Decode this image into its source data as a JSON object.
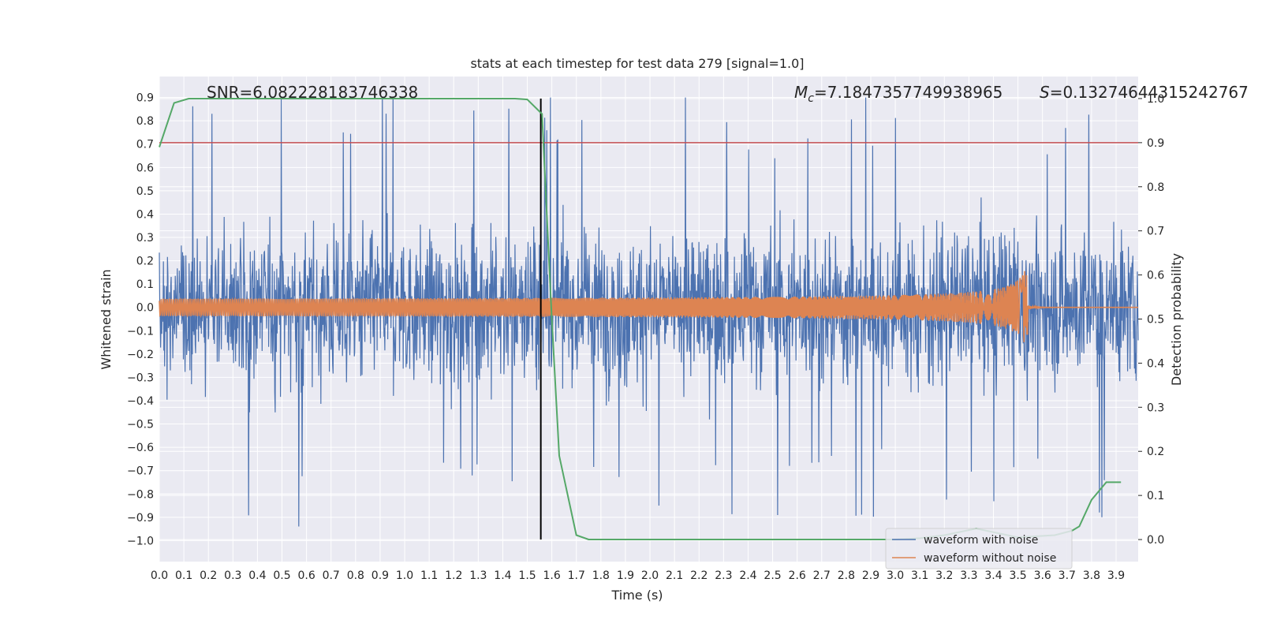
{
  "chart_data": {
    "type": "line",
    "title": "stats at each timestep for test data 279 [signal=1.0]",
    "xlabel": "Time (s)",
    "ylabel": "Whitened strain",
    "ylabel_right": "Detection probability",
    "xlim": [
      0.0,
      3.99
    ],
    "ylim": [
      -1.09,
      0.99
    ],
    "ylim_right": [
      -0.05,
      1.05
    ],
    "x_ticks": [
      "0.0",
      "0.1",
      "0.2",
      "0.3",
      "0.4",
      "0.5",
      "0.6",
      "0.7",
      "0.8",
      "0.9",
      "1.0",
      "1.1",
      "1.2",
      "1.3",
      "1.4",
      "1.5",
      "1.6",
      "1.7",
      "1.8",
      "1.9",
      "2.0",
      "2.1",
      "2.2",
      "2.3",
      "2.4",
      "2.5",
      "2.6",
      "2.7",
      "2.8",
      "2.9",
      "3.0",
      "3.1",
      "3.2",
      "3.3",
      "3.4",
      "3.5",
      "3.6",
      "3.7",
      "3.8",
      "3.9"
    ],
    "y_ticks": [
      "−1.0",
      "−0.9",
      "−0.8",
      "−0.7",
      "−0.6",
      "−0.5",
      "−0.4",
      "−0.3",
      "−0.2",
      "−0.1",
      "0.0",
      "0.1",
      "0.2",
      "0.3",
      "0.4",
      "0.5",
      "0.6",
      "0.7",
      "0.8",
      "0.9"
    ],
    "y_ticks_right": [
      "0.0",
      "0.1",
      "0.2",
      "0.3",
      "0.4",
      "0.5",
      "0.6",
      "0.7",
      "0.8",
      "0.9",
      "1.0"
    ],
    "annotations": {
      "snr": "SNR=6.082228183746338",
      "mc_symbol": "M",
      "mc_sub": "c",
      "mc_value": "=7.1847357749938965",
      "s_symbol": "S",
      "s_value": "=0.13274644315242767"
    },
    "threshold_right": 0.9,
    "vline_x": 1.555,
    "probability_series": {
      "name": "detection probability",
      "x": [
        0.0,
        0.06,
        0.12,
        0.25,
        0.5,
        0.75,
        1.0,
        1.25,
        1.45,
        1.5,
        1.56,
        1.6,
        1.63,
        1.7,
        1.75,
        2.0,
        2.5,
        3.0,
        3.1,
        3.2,
        3.33,
        3.5,
        3.65,
        3.72,
        3.75,
        3.8,
        3.86,
        3.92
      ],
      "y": [
        0.89,
        0.99,
        1.0,
        1.0,
        1.0,
        1.0,
        1.0,
        1.0,
        1.0,
        0.998,
        0.965,
        0.5,
        0.19,
        0.01,
        0.0,
        0.0,
        0.0,
        0.0,
        0.003,
        0.01,
        0.025,
        0.005,
        0.01,
        0.02,
        0.03,
        0.09,
        0.13,
        0.13
      ]
    },
    "series": [
      {
        "name": "waveform with noise",
        "color": "#4c72b0",
        "amplitude": 0.42,
        "peak_max": 0.9,
        "peak_min": -0.98
      },
      {
        "name": "waveform without noise",
        "color": "#dd8452",
        "chirp_start_amp": 0.03,
        "chirp_peak_amp": 0.2,
        "merger_time": 3.54
      }
    ],
    "grid": true,
    "legend_position": "lower-right",
    "legend": [
      "waveform with noise",
      "waveform without noise"
    ],
    "colors": {
      "background": "#eaeaf2",
      "grid": "#ffffff",
      "noise": "#4c72b0",
      "clean": "#dd8452",
      "probability": "#55a868",
      "threshold": "#c44e52",
      "vline": "#000000"
    }
  }
}
